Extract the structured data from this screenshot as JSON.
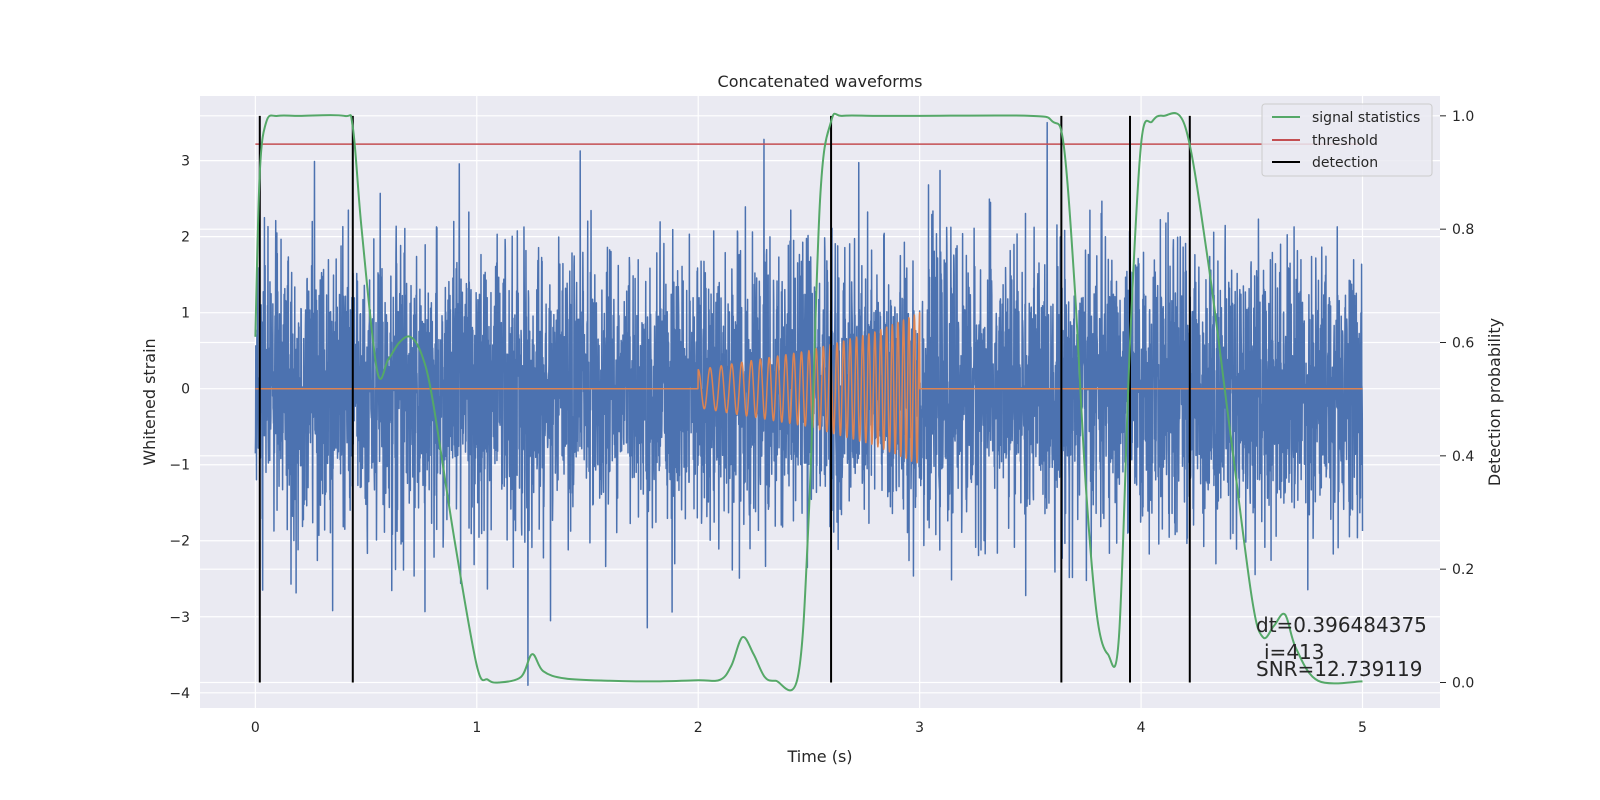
{
  "chart_data": {
    "type": "line",
    "title": "Concatenated waveforms",
    "xlabel": "Time (s)",
    "ylabel": "Whitened strain",
    "y2label": "Detection probability",
    "xlim": [
      -0.25,
      5.35
    ],
    "ylim": [
      -4.2,
      3.85
    ],
    "y2lim": [
      -0.045,
      1.035
    ],
    "xticks": [
      0,
      1,
      2,
      3,
      4,
      5
    ],
    "yticks": [
      -4,
      -3,
      -2,
      -1,
      0,
      1,
      2,
      3
    ],
    "y2ticks": [
      "0.0",
      "0.2",
      "0.4",
      "0.6",
      "0.8",
      "1.0"
    ],
    "grid": true,
    "legend_position": "top-right",
    "legend": [
      "signal statistics",
      "threshold",
      "detection"
    ],
    "colors": {
      "strain": "#4c72b0",
      "waveform": "#dd8452",
      "signal_statistics": "#55a868",
      "threshold": "#c44e52",
      "detection": "#000000",
      "background": "#eaeaf2"
    },
    "strain_noise": {
      "x_range": [
        0,
        5
      ],
      "approx_sigma": 0.9,
      "approx_min": -3.9,
      "approx_max": 3.5
    },
    "injected_waveform": {
      "x": [
        0,
        2,
        2.5,
        2.8,
        3,
        3.0,
        5
      ],
      "envelope": [
        0,
        0.25,
        0.5,
        0.75,
        1.0,
        0,
        0
      ]
    },
    "threshold": {
      "x": [
        0,
        5
      ],
      "value": 0.95
    },
    "signal_statistics": {
      "x": [
        0,
        0.02,
        0.05,
        0.1,
        0.2,
        0.4,
        0.44,
        0.48,
        0.55,
        0.6,
        0.65,
        0.7,
        0.75,
        0.8,
        0.9,
        1.0,
        1.05,
        1.1,
        1.2,
        1.25,
        1.3,
        1.4,
        1.6,
        1.8,
        2.0,
        2.1,
        2.15,
        2.2,
        2.25,
        2.3,
        2.35,
        2.45,
        2.5,
        2.55,
        2.6,
        2.65,
        2.8,
        3.0,
        3.5,
        3.6,
        3.65,
        3.7,
        3.75,
        3.8,
        3.85,
        3.9,
        3.95,
        4.0,
        4.05,
        4.1,
        4.2,
        4.3,
        4.4,
        4.5,
        4.55,
        4.6,
        4.65,
        4.7,
        4.8,
        5.0
      ],
      "y": [
        0.61,
        0.9,
        0.99,
        1.0,
        1.0,
        1.0,
        0.98,
        0.8,
        0.55,
        0.57,
        0.6,
        0.61,
        0.58,
        0.5,
        0.25,
        0.03,
        0.005,
        0.0,
        0.01,
        0.05,
        0.02,
        0.007,
        0.003,
        0.002,
        0.004,
        0.005,
        0.03,
        0.08,
        0.05,
        0.01,
        0.003,
        0.01,
        0.3,
        0.85,
        0.99,
        1.0,
        1.0,
        1.0,
        1.0,
        0.99,
        0.95,
        0.7,
        0.35,
        0.12,
        0.05,
        0.08,
        0.6,
        0.95,
        0.99,
        1.0,
        0.98,
        0.75,
        0.45,
        0.15,
        0.08,
        0.1,
        0.12,
        0.06,
        0.003,
        0.002
      ]
    },
    "detections": [
      0.02,
      0.44,
      2.6,
      3.64,
      3.95,
      4.22
    ],
    "annotations": [
      "dt=0.396484375",
      "i=413",
      "SNR=12.739119"
    ]
  }
}
